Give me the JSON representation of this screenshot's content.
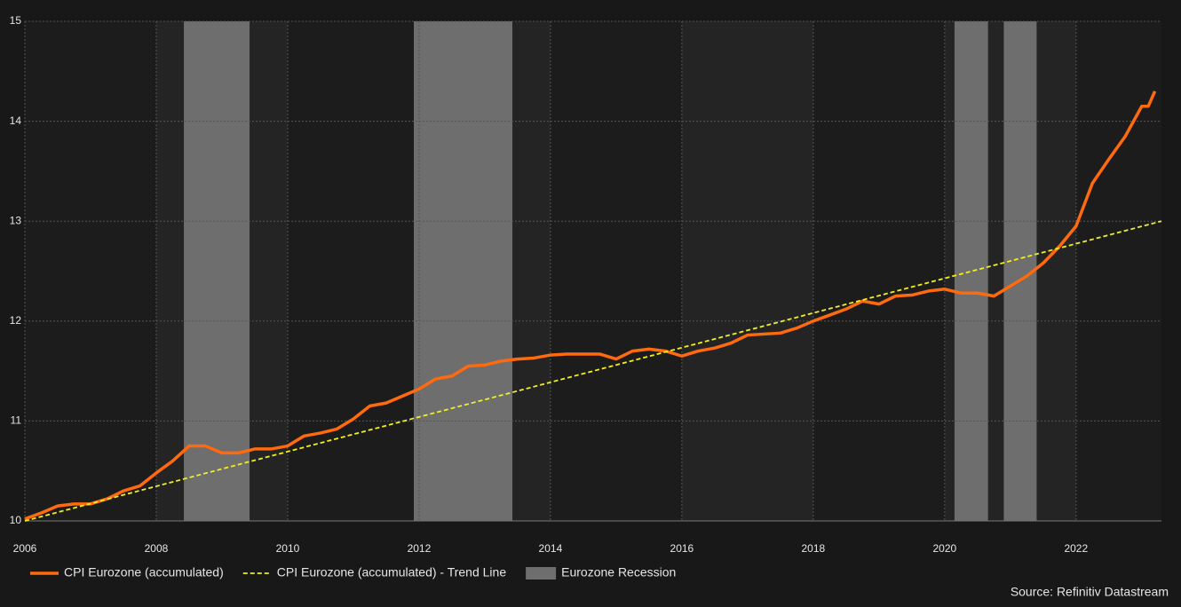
{
  "chart_data": {
    "type": "line",
    "xlim": [
      2006,
      2023.3
    ],
    "xticks": [
      2006,
      2008,
      2010,
      2012,
      2014,
      2016,
      2018,
      2020,
      2022
    ],
    "ylim": [
      10,
      15
    ],
    "yticks": [
      10,
      11,
      12,
      13,
      14,
      15
    ],
    "grid": true,
    "series": [
      {
        "name": "CPI Eurozone (accumulated)",
        "color": "#ff6a0e",
        "style": "solid",
        "x": [
          2006.0,
          2006.25,
          2006.5,
          2006.75,
          2007.0,
          2007.25,
          2007.5,
          2007.75,
          2008.0,
          2008.25,
          2008.5,
          2008.75,
          2009.0,
          2009.25,
          2009.5,
          2009.75,
          2010.0,
          2010.25,
          2010.5,
          2010.75,
          2011.0,
          2011.25,
          2011.5,
          2011.75,
          2012.0,
          2012.25,
          2012.5,
          2012.75,
          2013.0,
          2013.25,
          2013.5,
          2013.75,
          2014.0,
          2014.25,
          2014.5,
          2014.75,
          2015.0,
          2015.25,
          2015.5,
          2015.75,
          2016.0,
          2016.25,
          2016.5,
          2016.75,
          2017.0,
          2017.25,
          2017.5,
          2017.75,
          2018.0,
          2018.25,
          2018.5,
          2018.75,
          2019.0,
          2019.25,
          2019.5,
          2019.75,
          2020.0,
          2020.25,
          2020.5,
          2020.75,
          2021.0,
          2021.25,
          2021.5,
          2021.75,
          2022.0,
          2022.25,
          2022.5,
          2022.75,
          2023.0,
          2023.1,
          2023.2
        ],
        "values": [
          10.02,
          10.08,
          10.15,
          10.17,
          10.17,
          10.22,
          10.3,
          10.35,
          10.48,
          10.6,
          10.75,
          10.75,
          10.68,
          10.68,
          10.72,
          10.72,
          10.75,
          10.85,
          10.88,
          10.92,
          11.02,
          11.15,
          11.18,
          11.25,
          11.32,
          11.42,
          11.45,
          11.55,
          11.56,
          11.6,
          11.62,
          11.63,
          11.66,
          11.67,
          11.67,
          11.67,
          11.62,
          11.7,
          11.72,
          11.7,
          11.65,
          11.7,
          11.73,
          11.78,
          11.86,
          11.87,
          11.88,
          11.93,
          12.0,
          12.06,
          12.12,
          12.2,
          12.17,
          12.25,
          12.26,
          12.3,
          12.32,
          12.28,
          12.28,
          12.25,
          12.35,
          12.45,
          12.58,
          12.75,
          12.95,
          13.38,
          13.62,
          13.85,
          14.15,
          14.15,
          14.3
        ]
      },
      {
        "name": "CPI Eurozone (accumulated) - Trend Line",
        "color": "#f0f020",
        "style": "dashed",
        "x": [
          2006,
          2023.3
        ],
        "values": [
          10,
          13.0
        ]
      }
    ],
    "recession_name": "Eurozone Recession",
    "recession_color": "#6e6e6e",
    "recessions": [
      [
        2008.42,
        2009.42
      ],
      [
        2011.92,
        2013.42
      ],
      [
        2020.15,
        2020.66
      ],
      [
        2020.9,
        2021.4
      ]
    ],
    "source": "Source: Refinitiv Datastream"
  }
}
